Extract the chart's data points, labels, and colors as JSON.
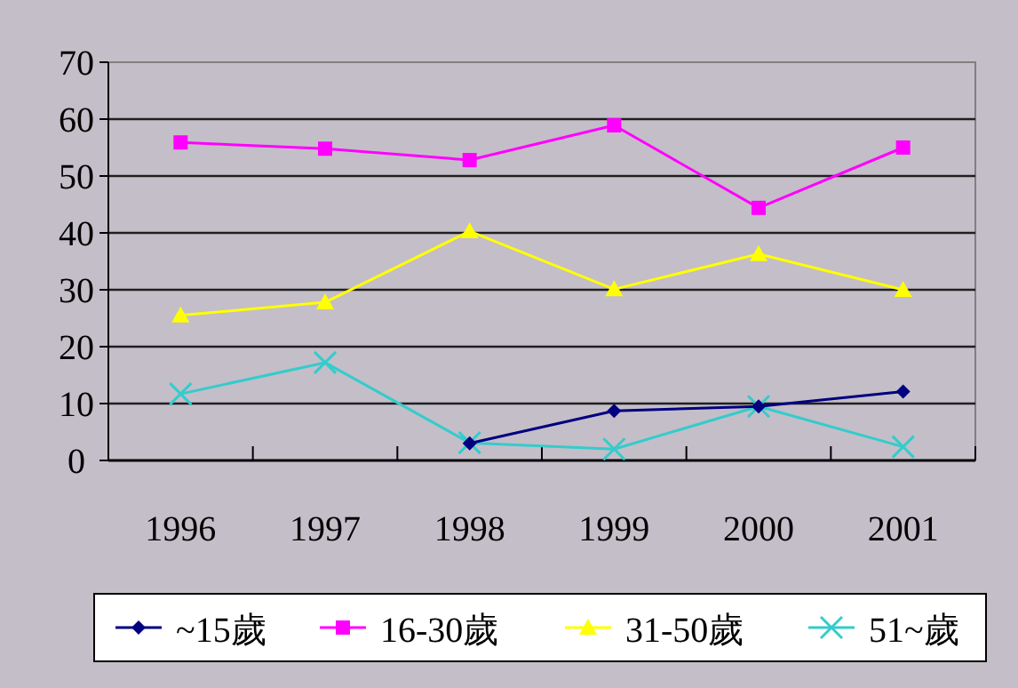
{
  "chart_data": {
    "type": "line",
    "categories": [
      "1996",
      "1997",
      "1998",
      "1999",
      "2000",
      "2001"
    ],
    "series": [
      {
        "name": "~15歲",
        "color": "#000080",
        "marker": "diamond",
        "values": [
          null,
          null,
          3,
          8.7,
          9.5,
          12.1
        ]
      },
      {
        "name": "16-30歲",
        "color": "#ff00ff",
        "marker": "square",
        "values": [
          55.9,
          54.8,
          52.8,
          58.9,
          44.4,
          55
        ]
      },
      {
        "name": "31-50歲",
        "color": "#ffff00",
        "marker": "triangle",
        "values": [
          25.5,
          27.8,
          40.3,
          30.1,
          36.3,
          30
        ]
      },
      {
        "name": "51~歲",
        "color": "#33cccc",
        "marker": "cross",
        "values": [
          11.7,
          17.2,
          3.1,
          2,
          9.5,
          2.4
        ]
      }
    ],
    "ylim": [
      0,
      70
    ],
    "yticks": [
      0,
      10,
      20,
      30,
      40,
      50,
      60,
      70
    ],
    "grid": "y",
    "legend": "bottom"
  }
}
